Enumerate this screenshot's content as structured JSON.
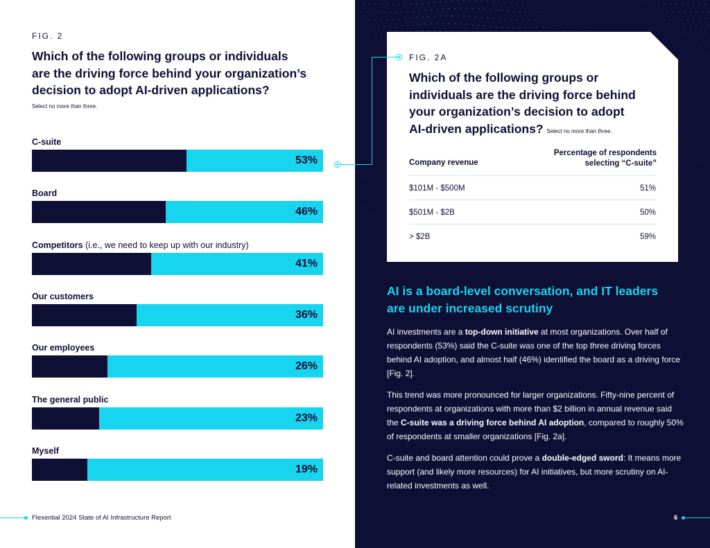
{
  "left": {
    "fig_label": "FIG. 2",
    "title": "Which of the following groups or individuals are the driving force behind your organization’s decision to adopt AI-driven applications?",
    "note": "Select no more than three.",
    "bars": [
      {
        "label_bold": "C-suite",
        "label_rest": "",
        "percent": 53,
        "value_text": "53%"
      },
      {
        "label_bold": "Board",
        "label_rest": "",
        "percent": 46,
        "value_text": "46%"
      },
      {
        "label_bold": "Competitors",
        "label_rest": " (i.e., we need to keep up with our industry)",
        "percent": 41,
        "value_text": "41%"
      },
      {
        "label_bold": "Our customers",
        "label_rest": "",
        "percent": 36,
        "value_text": "36%"
      },
      {
        "label_bold": "Our employees",
        "label_rest": "",
        "percent": 26,
        "value_text": "26%"
      },
      {
        "label_bold": "The general public",
        "label_rest": "",
        "percent": 23,
        "value_text": "23%"
      },
      {
        "label_bold": "Myself",
        "label_rest": "",
        "percent": 19,
        "value_text": "19%"
      }
    ],
    "footer": "Flexential 2024 State of AI Infrastructure Report"
  },
  "card": {
    "fig_label": "FIG. 2A",
    "title": "Which of the following groups or individuals are the driving force behind your organization’s decision to adopt AI-driven applications?",
    "note": "Select no more than three.",
    "col1_header": "Company revenue",
    "col2_header_line1": "Percentage of respondents",
    "col2_header_line2": "selecting “C-suite”",
    "rows": [
      {
        "revenue": "$101M - $500M",
        "pct": "51%"
      },
      {
        "revenue": "$501M - $2B",
        "pct": "50%"
      },
      {
        "revenue": "> $2B",
        "pct": "59%"
      }
    ]
  },
  "right": {
    "heading": "AI is a board-level conversation, and IT leaders are under increased scrutiny",
    "p1_a": "AI investments are a ",
    "p1_b": "top-down initiative",
    "p1_c": " at most organizations. Over half of respondents (53%) said the C-suite was one of the top three driving forces behind AI adoption, and almost half (46%) identified the board as a driving force [Fig. 2].",
    "p2_a": "This trend was more pronounced for larger organizations. Fifty-nine percent of respondents at organizations with more than $2 billion in annual revenue said the ",
    "p2_b": "C-suite was a driving force behind AI adoption",
    "p2_c": ", compared to roughly 50% of respondents at smaller organizations [Fig. 2a].",
    "p3_a": "C-suite and board attention could prove a ",
    "p3_b": "double-edged sword",
    "p3_c": ": It means more support (and likely more resources) for AI initiatives, but more scrutiny on AI-related investments as well.",
    "page_number": "6"
  },
  "colors": {
    "navy": "#0e0f35",
    "cyan": "#17d4ef",
    "white": "#ffffff"
  }
}
